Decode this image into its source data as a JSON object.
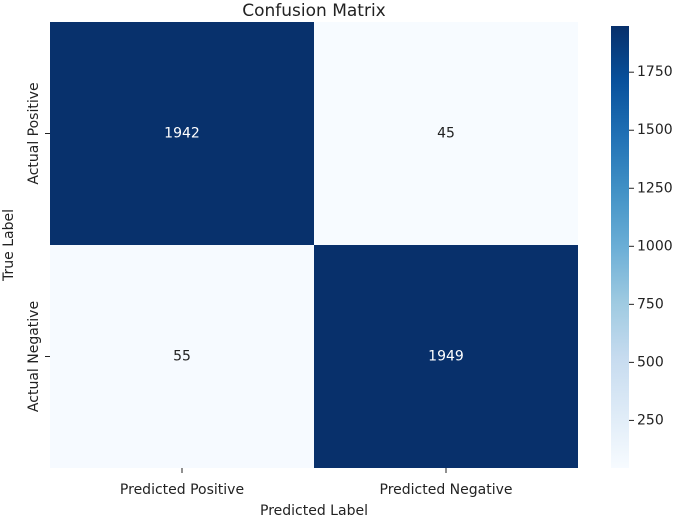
{
  "chart_data": {
    "type": "heatmap",
    "title": "Confusion Matrix",
    "x_label": "Predicted Label",
    "y_label": "True Label",
    "x_categories": [
      "Predicted Positive",
      "Predicted Negative"
    ],
    "y_categories": [
      "Actual Positive",
      "Actual Negative"
    ],
    "values": [
      [
        1942,
        45
      ],
      [
        55,
        1949
      ]
    ],
    "colormap": "Blues",
    "clim": [
      45,
      1949
    ],
    "colorbar_ticks": [
      250,
      500,
      750,
      1000,
      1250,
      1500,
      1750
    ]
  }
}
